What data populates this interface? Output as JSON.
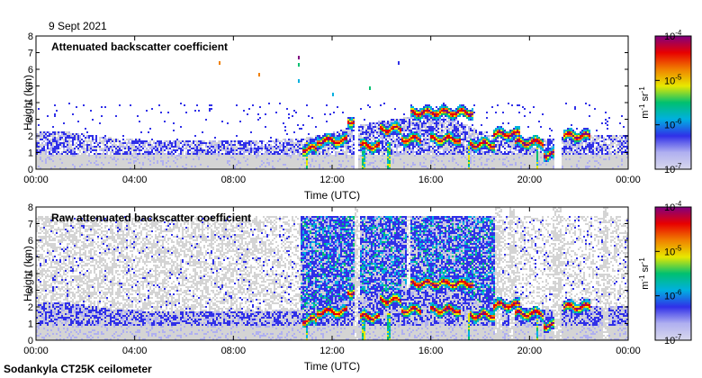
{
  "date_label": "9 Sept 2021",
  "footer": "Sodankyla CT25K ceilometer",
  "colors": {
    "ramp": [
      "#d8d8ec",
      "#b0b0f0",
      "#3030e8",
      "#00b0e0",
      "#00c070",
      "#e8e800",
      "#f08000",
      "#e80000",
      "#800080"
    ],
    "ground_noise": "#d4d4d4"
  },
  "chart_data": [
    {
      "type": "heatmap",
      "title": "Attenuated backscatter coefficient",
      "xlabel": "Time (UTC)",
      "ylabel": "Height (km)",
      "xlim": [
        0,
        24
      ],
      "ylim": [
        0,
        8
      ],
      "x_ticks": [
        0,
        4,
        8,
        12,
        16,
        20,
        24
      ],
      "x_tick_labels": [
        "00:00",
        "04:00",
        "08:00",
        "12:00",
        "16:00",
        "20:00",
        "00:00"
      ],
      "y_ticks": [
        0,
        1,
        2,
        3,
        4,
        5,
        6,
        7,
        8
      ],
      "y_tick_labels": [
        "0",
        "1",
        "2",
        "3",
        "4",
        "5",
        "6",
        "7",
        "8"
      ],
      "colorbar": {
        "scale": "log",
        "range": [
          1e-07,
          0.0001
        ],
        "tick_values": [
          1e-07,
          1e-06,
          1e-05,
          0.0001
        ],
        "tick_labels": [
          {
            "base": "10",
            "exp": "-7"
          },
          {
            "base": "10",
            "exp": "-6"
          },
          {
            "base": "10",
            "exp": "-5"
          },
          {
            "base": "10",
            "exp": "-4"
          }
        ],
        "units": {
          "m": "m",
          "m_exp": "-1",
          "sr": "sr",
          "sr_exp": "-1"
        }
      },
      "features": {
        "boundary_layer": [
          [
            0,
            2.2
          ],
          [
            1,
            2.3
          ],
          [
            2,
            2.1
          ],
          [
            3,
            1.9
          ],
          [
            4,
            1.8
          ],
          [
            6,
            1.7
          ],
          [
            8,
            1.7
          ],
          [
            10,
            1.8
          ],
          [
            11,
            1.9
          ],
          [
            12,
            2.2
          ],
          [
            13,
            2.6
          ],
          [
            14,
            2.9
          ],
          [
            15,
            3.1
          ],
          [
            16,
            3.3
          ],
          [
            17,
            3.0
          ],
          [
            18,
            2.3
          ],
          [
            19,
            2.0
          ],
          [
            20,
            1.9
          ],
          [
            21,
            1.8
          ],
          [
            22,
            2.0
          ],
          [
            23,
            2.1
          ],
          [
            24,
            2.1
          ]
        ],
        "signal_top": 4.0,
        "cloud_segments": [
          {
            "x0": 10.8,
            "x1": 11.4,
            "h": 1.2
          },
          {
            "x0": 11.4,
            "x1": 12.6,
            "h": 1.7
          },
          {
            "x0": 12.6,
            "x1": 12.9,
            "h": 2.9
          },
          {
            "x0": 13.1,
            "x1": 13.9,
            "h": 1.4
          },
          {
            "x0": 13.9,
            "x1": 14.8,
            "h": 2.4
          },
          {
            "x0": 14.8,
            "x1": 15.6,
            "h": 1.8
          },
          {
            "x0": 15.2,
            "x1": 17.7,
            "h": 3.4
          },
          {
            "x0": 16.0,
            "x1": 17.2,
            "h": 1.8
          },
          {
            "x0": 17.6,
            "x1": 18.6,
            "h": 1.5
          },
          {
            "x0": 18.5,
            "x1": 19.6,
            "h": 2.1
          },
          {
            "x0": 19.4,
            "x1": 20.6,
            "h": 1.6
          },
          {
            "x0": 20.6,
            "x1": 21.0,
            "h": 0.9
          },
          {
            "x0": 21.4,
            "x1": 22.5,
            "h": 2.0
          }
        ],
        "gaps": [
          [
            12.9,
            13.05
          ],
          [
            21.0,
            21.3
          ]
        ],
        "fog_columns": [
          [
            10.95,
            11.05
          ],
          [
            13.2,
            13.35
          ],
          [
            14.2,
            14.35
          ],
          [
            17.5,
            17.6
          ],
          [
            20.25,
            20.35
          ]
        ],
        "upper_specks": [
          [
            7.4,
            6.5
          ],
          [
            9.0,
            5.8
          ],
          [
            10.6,
            6.8
          ],
          [
            10.6,
            6.4
          ],
          [
            10.6,
            5.4
          ],
          [
            14.65,
            6.5
          ],
          [
            13.5,
            5.0
          ],
          [
            12.0,
            4.6
          ]
        ]
      }
    },
    {
      "type": "heatmap",
      "title": "Raw attenuated backscatter coefficient",
      "xlabel": "Time (UTC)",
      "ylabel": "Height (km)",
      "xlim": [
        0,
        24
      ],
      "ylim": [
        0,
        8
      ],
      "x_ticks": [
        0,
        4,
        8,
        12,
        16,
        20,
        24
      ],
      "x_tick_labels": [
        "00:00",
        "04:00",
        "08:00",
        "12:00",
        "16:00",
        "20:00",
        "00:00"
      ],
      "y_ticks": [
        0,
        1,
        2,
        3,
        4,
        5,
        6,
        7,
        8
      ],
      "y_tick_labels": [
        "0",
        "1",
        "2",
        "3",
        "4",
        "5",
        "6",
        "7",
        "8"
      ],
      "colorbar": {
        "scale": "log",
        "range": [
          1e-07,
          0.0001
        ],
        "tick_values": [
          1e-07,
          1e-06,
          1e-05,
          0.0001
        ],
        "tick_labels": [
          {
            "base": "10",
            "exp": "-7"
          },
          {
            "base": "10",
            "exp": "-6"
          },
          {
            "base": "10",
            "exp": "-5"
          },
          {
            "base": "10",
            "exp": "-4"
          }
        ],
        "units": {
          "m": "m",
          "m_exp": "-1",
          "sr": "sr",
          "sr_exp": "-1"
        }
      },
      "features": {
        "boundary_layer": [
          [
            0,
            2.2
          ],
          [
            1,
            2.3
          ],
          [
            2,
            2.1
          ],
          [
            3,
            1.9
          ],
          [
            4,
            1.8
          ],
          [
            6,
            1.7
          ],
          [
            8,
            1.7
          ],
          [
            10,
            1.8
          ],
          [
            11,
            1.9
          ],
          [
            12,
            2.2
          ],
          [
            13,
            2.6
          ],
          [
            14,
            2.9
          ],
          [
            15,
            3.1
          ],
          [
            16,
            3.3
          ],
          [
            17,
            3.0
          ],
          [
            18,
            2.3
          ],
          [
            19,
            2.0
          ],
          [
            20,
            1.9
          ],
          [
            21,
            1.8
          ],
          [
            22,
            2.0
          ],
          [
            23,
            2.1
          ],
          [
            24,
            2.1
          ]
        ],
        "noise_top": 7.5,
        "dense_intervals": [
          [
            10.7,
            12.9
          ],
          [
            13.1,
            15.0
          ],
          [
            15.2,
            18.7
          ]
        ],
        "light_bands": [
          [
            18.6,
            18.9
          ],
          [
            20.9,
            21.3
          ],
          [
            19.2,
            19.4
          ],
          [
            23.0,
            23.2
          ]
        ],
        "cloud_segments": [
          {
            "x0": 10.8,
            "x1": 11.4,
            "h": 1.2
          },
          {
            "x0": 11.4,
            "x1": 12.6,
            "h": 1.7
          },
          {
            "x0": 12.6,
            "x1": 12.9,
            "h": 2.9
          },
          {
            "x0": 13.1,
            "x1": 13.9,
            "h": 1.4
          },
          {
            "x0": 13.9,
            "x1": 14.8,
            "h": 2.4
          },
          {
            "x0": 14.8,
            "x1": 15.6,
            "h": 1.8
          },
          {
            "x0": 15.2,
            "x1": 17.7,
            "h": 3.4
          },
          {
            "x0": 16.0,
            "x1": 17.2,
            "h": 1.8
          },
          {
            "x0": 17.6,
            "x1": 18.6,
            "h": 1.5
          },
          {
            "x0": 18.5,
            "x1": 19.6,
            "h": 2.1
          },
          {
            "x0": 19.4,
            "x1": 20.6,
            "h": 1.6
          },
          {
            "x0": 20.6,
            "x1": 21.0,
            "h": 0.9
          },
          {
            "x0": 21.4,
            "x1": 22.5,
            "h": 2.0
          }
        ],
        "gaps": [
          [
            12.9,
            13.05
          ],
          [
            21.0,
            21.3
          ]
        ],
        "fog_columns": [
          [
            10.95,
            11.05
          ],
          [
            13.2,
            13.35
          ],
          [
            14.2,
            14.35
          ],
          [
            17.5,
            17.6
          ],
          [
            20.25,
            20.35
          ]
        ]
      }
    }
  ]
}
